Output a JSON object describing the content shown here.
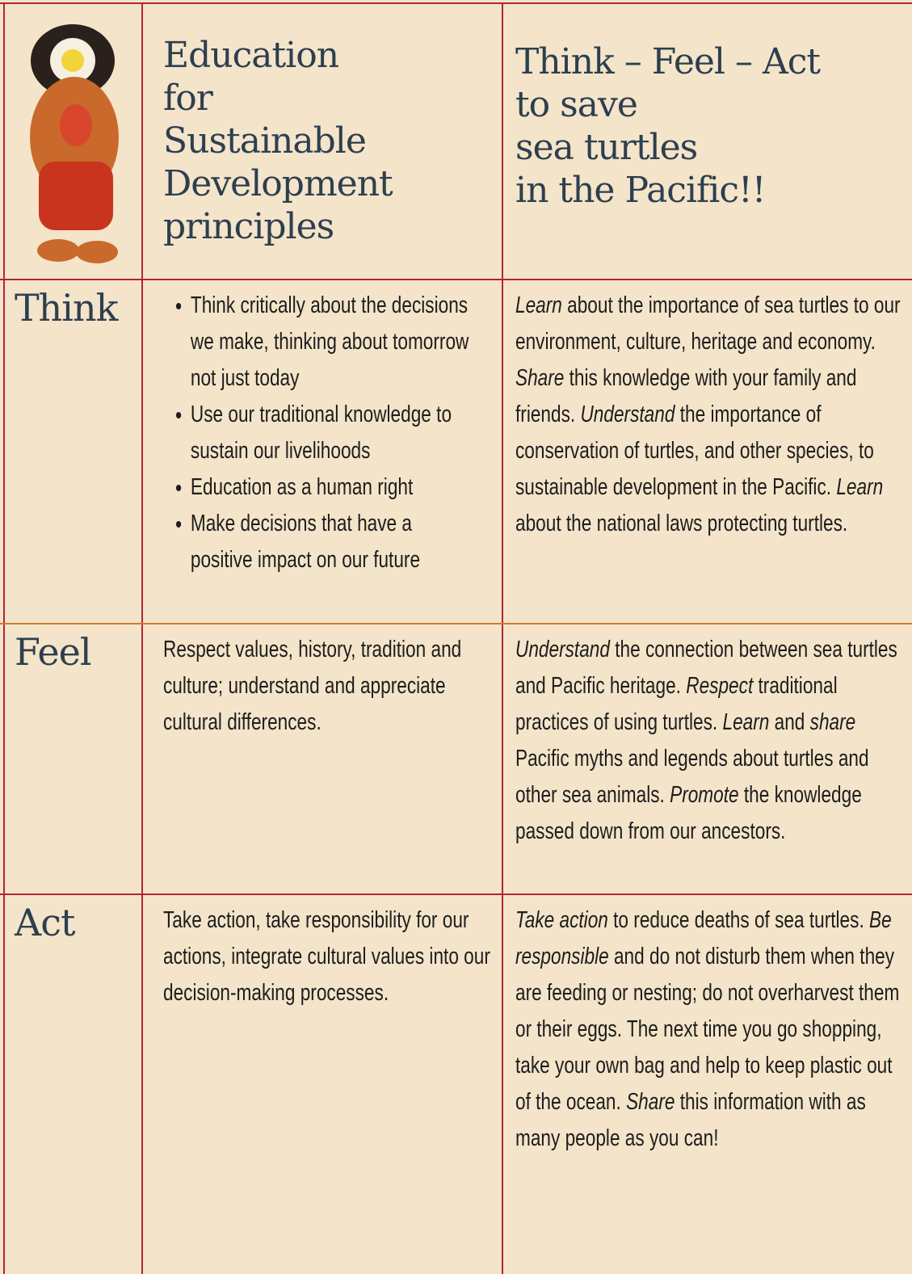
{
  "header": {
    "principles_title": [
      "Education",
      "for",
      "Sustainable",
      "Development",
      "principles"
    ],
    "action_title": [
      "Think – Feel – Act",
      "to save",
      "sea turtles",
      "in the Pacific!!"
    ]
  },
  "rows": [
    {
      "label": "Think",
      "principles": {
        "bullets": [
          "Think critically about the decisions we make, thinking about tomorrow not just today",
          "Use our traditional knowledge to sustain our livelihoods",
          "Education as a human right",
          "Make decisions that have a positive impact on our future"
        ]
      },
      "actions": [
        {
          "text": "Learn",
          "italic": true
        },
        {
          "text": " about the importance of sea turtles to our environment, culture, heritage and economy. "
        },
        {
          "text": "Share",
          "italic": true
        },
        {
          "text": " this knowledge with your family and friends. "
        },
        {
          "text": "Understand",
          "italic": true
        },
        {
          "text": " the importance of conservation of turtles, and other species, to sustainable development in the Pacific. "
        },
        {
          "text": "Learn",
          "italic": true
        },
        {
          "text": " about the national laws protecting turtles."
        }
      ]
    },
    {
      "label": "Feel",
      "principles": {
        "text": "Respect values, history, tradition and culture; understand and appreciate cultural differences."
      },
      "actions": [
        {
          "text": "Understand",
          "italic": true
        },
        {
          "text": " the connection between sea turtles and Pacific heritage. "
        },
        {
          "text": "Respect",
          "italic": true
        },
        {
          "text": " traditional practices of using turtles. "
        },
        {
          "text": "Learn",
          "italic": true
        },
        {
          "text": " and "
        },
        {
          "text": "share",
          "italic": true
        },
        {
          "text": " Pacific myths and legends about turtles and other sea animals. "
        },
        {
          "text": "Promote",
          "italic": true
        },
        {
          "text": " the knowledge passed down from our ancestors."
        }
      ]
    },
    {
      "label": "Act",
      "principles": {
        "text": "Take action, take responsibility for our actions, integrate cultural values into our decision-making processes."
      },
      "actions": [
        {
          "text": "Take action",
          "italic": true
        },
        {
          "text": " to reduce deaths of sea turtles. "
        },
        {
          "text": "Be responsible",
          "italic": true
        },
        {
          "text": " and do not disturb them when they are feeding or nesting; do not overharvest them or their eggs. The next time you go shopping, take your own bag and help to keep plastic out of the ocean. "
        },
        {
          "text": "Share",
          "italic": true
        },
        {
          "text": " this information with as many people as you can!"
        }
      ]
    }
  ]
}
